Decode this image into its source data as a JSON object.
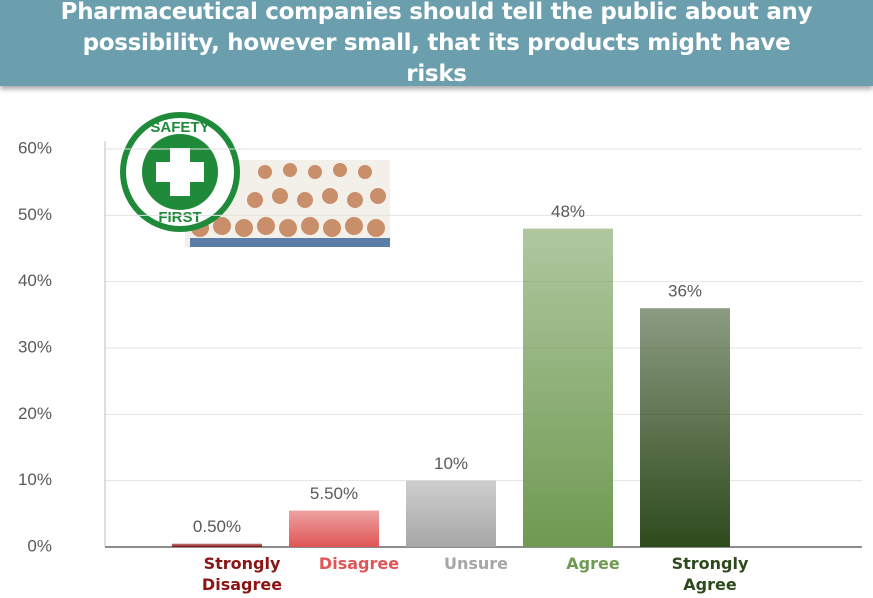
{
  "chart_data": {
    "type": "bar",
    "title": "Pharmaceutical companies should tell the public about any possibility, however small, that its products might have risks",
    "categories": [
      "Strongly Disagree",
      "Disagree",
      "Unsure",
      "Agree",
      "Strongly Agree"
    ],
    "values": [
      0.5,
      5.5,
      10,
      48,
      36
    ],
    "value_labels": [
      "0.50%",
      "5.50%",
      "10%",
      "48%",
      "36%"
    ],
    "colors": [
      "#8b1414",
      "#e05555",
      "#a6a6a6",
      "#6f9a52",
      "#2e4a1c"
    ],
    "ylim": [
      0,
      60
    ],
    "yticks": [
      {
        "value": 0,
        "label": "0%"
      },
      {
        "value": 10,
        "label": "10%"
      },
      {
        "value": 20,
        "label": "20%"
      },
      {
        "value": 30,
        "label": "30%"
      },
      {
        "value": 40,
        "label": "40%"
      },
      {
        "value": 50,
        "label": "50%"
      },
      {
        "value": 60,
        "label": "60%"
      }
    ],
    "grid": true,
    "badge_text": [
      "SAFETY",
      "FIRST"
    ]
  }
}
